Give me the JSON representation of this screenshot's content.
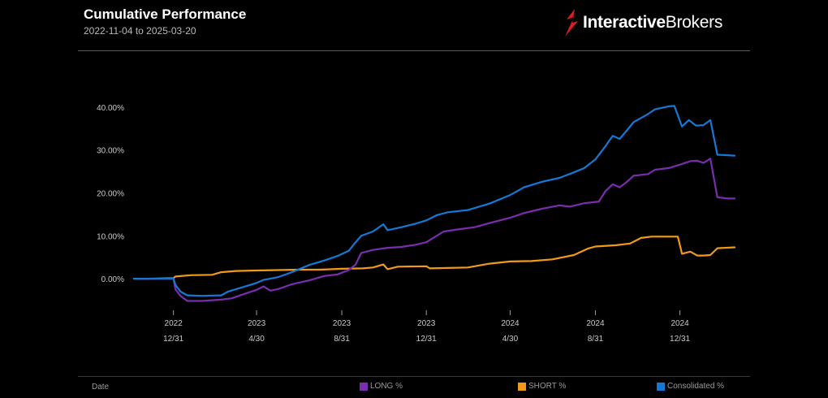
{
  "header": {
    "title": "Cumulative Performance",
    "subtitle": "2022-11-04 to 2025-03-20",
    "brand_bold": "Interactive",
    "brand_regular": "Brokers"
  },
  "footer": {
    "date_label": "Date"
  },
  "colors": {
    "background": "#000000",
    "long": "#7b2db0",
    "short": "#f29a16",
    "consolidated": "#1479d6",
    "brand_red": "#d81e25",
    "axis_text": "#c9c9c9"
  },
  "chart_data": {
    "type": "line",
    "ylim": [
      -7,
      47
    ],
    "yticks": [
      0,
      10,
      20,
      30,
      40
    ],
    "ytick_labels": [
      "0.00%",
      "10.00%",
      "20.00%",
      "30.00%",
      "40.00%"
    ],
    "xlim": [
      "2022-11-04",
      "2025-03-20"
    ],
    "xticks": [
      "2022-12-31",
      "2023-04-30",
      "2023-08-31",
      "2023-12-31",
      "2024-04-30",
      "2024-08-31",
      "2024-12-31"
    ],
    "xtick_labels": [
      [
        "2022",
        "12/31"
      ],
      [
        "2023",
        "4/30"
      ],
      [
        "2023",
        "8/31"
      ],
      [
        "2023",
        "12/31"
      ],
      [
        "2024",
        "4/30"
      ],
      [
        "2024",
        "8/31"
      ],
      [
        "2024",
        "12/31"
      ]
    ],
    "grid": false,
    "legend_position": "bottom",
    "series": [
      {
        "name": "LONG %",
        "color": "#7b2db0",
        "points": [
          [
            "2022-11-04",
            0
          ],
          [
            "2022-12-31",
            0
          ],
          [
            "2023-01-03",
            -2.5
          ],
          [
            "2023-01-10",
            -4.0
          ],
          [
            "2023-01-20",
            -5.2
          ],
          [
            "2023-02-10",
            -5.2
          ],
          [
            "2023-03-10",
            -4.9
          ],
          [
            "2023-03-25",
            -4.6
          ],
          [
            "2023-04-10",
            -3.7
          ],
          [
            "2023-04-30",
            -2.6
          ],
          [
            "2023-05-10",
            -1.8
          ],
          [
            "2023-05-20",
            -2.8
          ],
          [
            "2023-06-01",
            -2.4
          ],
          [
            "2023-06-20",
            -1.3
          ],
          [
            "2023-07-15",
            -0.4
          ],
          [
            "2023-08-05",
            0.6
          ],
          [
            "2023-08-25",
            1.0
          ],
          [
            "2023-09-10",
            2.0
          ],
          [
            "2023-09-20",
            3.3
          ],
          [
            "2023-09-28",
            6.0
          ],
          [
            "2023-10-15",
            6.7
          ],
          [
            "2023-11-05",
            7.2
          ],
          [
            "2023-11-25",
            7.4
          ],
          [
            "2023-12-15",
            7.9
          ],
          [
            "2023-12-31",
            8.5
          ],
          [
            "2024-01-15",
            10.0
          ],
          [
            "2024-01-25",
            11.0
          ],
          [
            "2024-02-15",
            11.5
          ],
          [
            "2024-03-10",
            12.0
          ],
          [
            "2024-04-01",
            13.0
          ],
          [
            "2024-04-30",
            14.2
          ],
          [
            "2024-05-20",
            15.3
          ],
          [
            "2024-06-15",
            16.3
          ],
          [
            "2024-07-10",
            17.1
          ],
          [
            "2024-07-25",
            16.8
          ],
          [
            "2024-08-15",
            17.6
          ],
          [
            "2024-09-05",
            18.0
          ],
          [
            "2024-09-15",
            20.5
          ],
          [
            "2024-09-25",
            22.0
          ],
          [
            "2024-10-05",
            21.3
          ],
          [
            "2024-10-15",
            22.5
          ],
          [
            "2024-10-25",
            24.0
          ],
          [
            "2024-11-15",
            24.4
          ],
          [
            "2024-11-25",
            25.4
          ],
          [
            "2024-12-15",
            25.8
          ],
          [
            "2024-12-31",
            26.6
          ],
          [
            "2025-01-15",
            27.4
          ],
          [
            "2025-01-25",
            27.5
          ],
          [
            "2025-02-03",
            27.0
          ],
          [
            "2025-02-13",
            28.0
          ],
          [
            "2025-02-23",
            19.0
          ],
          [
            "2025-03-10",
            18.7
          ],
          [
            "2025-03-20",
            18.7
          ]
        ]
      },
      {
        "name": "SHORT %",
        "color": "#f29a16",
        "points": [
          [
            "2022-11-04",
            0
          ],
          [
            "2022-11-25",
            0
          ],
          [
            "2022-12-31",
            0.1
          ],
          [
            "2023-01-03",
            0.5
          ],
          [
            "2023-01-25",
            0.8
          ],
          [
            "2023-02-25",
            0.9
          ],
          [
            "2023-03-10",
            1.5
          ],
          [
            "2023-03-31",
            1.8
          ],
          [
            "2023-04-30",
            1.9
          ],
          [
            "2023-05-31",
            2.0
          ],
          [
            "2023-06-30",
            2.1
          ],
          [
            "2023-07-31",
            2.1
          ],
          [
            "2023-08-31",
            2.3
          ],
          [
            "2023-09-30",
            2.4
          ],
          [
            "2023-10-15",
            2.6
          ],
          [
            "2023-10-30",
            3.3
          ],
          [
            "2023-11-05",
            2.2
          ],
          [
            "2023-11-20",
            2.8
          ],
          [
            "2023-12-31",
            2.9
          ],
          [
            "2024-01-05",
            2.4
          ],
          [
            "2024-01-31",
            2.5
          ],
          [
            "2024-02-29",
            2.6
          ],
          [
            "2024-03-31",
            3.5
          ],
          [
            "2024-04-30",
            4.0
          ],
          [
            "2024-05-31",
            4.1
          ],
          [
            "2024-06-30",
            4.5
          ],
          [
            "2024-07-31",
            5.5
          ],
          [
            "2024-08-20",
            7.0
          ],
          [
            "2024-08-31",
            7.5
          ],
          [
            "2024-09-30",
            7.8
          ],
          [
            "2024-10-20",
            8.2
          ],
          [
            "2024-11-05",
            9.5
          ],
          [
            "2024-11-20",
            9.8
          ],
          [
            "2024-12-28",
            9.8
          ],
          [
            "2025-01-03",
            5.8
          ],
          [
            "2025-01-15",
            6.3
          ],
          [
            "2025-01-25",
            5.4
          ],
          [
            "2025-02-03",
            5.4
          ],
          [
            "2025-02-13",
            5.5
          ],
          [
            "2025-02-23",
            7.1
          ],
          [
            "2025-03-20",
            7.3
          ]
        ]
      },
      {
        "name": "Consolidated %",
        "color": "#1479d6",
        "points": [
          [
            "2022-11-04",
            0
          ],
          [
            "2022-12-31",
            0
          ],
          [
            "2023-01-03",
            -1.5
          ],
          [
            "2023-01-10",
            -3.0
          ],
          [
            "2023-01-20",
            -3.9
          ],
          [
            "2023-02-10",
            -4.0
          ],
          [
            "2023-03-10",
            -3.9
          ],
          [
            "2023-03-20",
            -3.0
          ],
          [
            "2023-04-10",
            -2.0
          ],
          [
            "2023-04-30",
            -1.0
          ],
          [
            "2023-05-10",
            -0.3
          ],
          [
            "2023-05-20",
            0
          ],
          [
            "2023-06-01",
            0.4
          ],
          [
            "2023-06-20",
            1.5
          ],
          [
            "2023-07-15",
            3.2
          ],
          [
            "2023-08-05",
            4.2
          ],
          [
            "2023-08-25",
            5.3
          ],
          [
            "2023-09-10",
            6.5
          ],
          [
            "2023-09-20",
            8.5
          ],
          [
            "2023-09-28",
            10.0
          ],
          [
            "2023-10-15",
            11.0
          ],
          [
            "2023-10-30",
            12.7
          ],
          [
            "2023-11-05",
            11.3
          ],
          [
            "2023-11-25",
            12.0
          ],
          [
            "2023-12-15",
            12.8
          ],
          [
            "2023-12-31",
            13.6
          ],
          [
            "2024-01-15",
            14.8
          ],
          [
            "2024-01-31",
            15.5
          ],
          [
            "2024-02-29",
            16.0
          ],
          [
            "2024-03-31",
            17.5
          ],
          [
            "2024-04-30",
            19.5
          ],
          [
            "2024-05-20",
            21.3
          ],
          [
            "2024-06-15",
            22.6
          ],
          [
            "2024-07-10",
            23.5
          ],
          [
            "2024-07-31",
            24.8
          ],
          [
            "2024-08-15",
            25.8
          ],
          [
            "2024-08-31",
            27.8
          ],
          [
            "2024-09-15",
            31.0
          ],
          [
            "2024-09-25",
            33.3
          ],
          [
            "2024-10-05",
            32.6
          ],
          [
            "2024-10-15",
            34.5
          ],
          [
            "2024-10-25",
            36.5
          ],
          [
            "2024-11-15",
            38.4
          ],
          [
            "2024-11-25",
            39.5
          ],
          [
            "2024-12-15",
            40.2
          ],
          [
            "2024-12-23",
            40.3
          ],
          [
            "2025-01-03",
            35.5
          ],
          [
            "2025-01-13",
            37.0
          ],
          [
            "2025-01-23",
            35.7
          ],
          [
            "2025-02-03",
            35.8
          ],
          [
            "2025-02-13",
            37.0
          ],
          [
            "2025-02-23",
            28.9
          ],
          [
            "2025-03-20",
            28.7
          ]
        ]
      }
    ]
  }
}
